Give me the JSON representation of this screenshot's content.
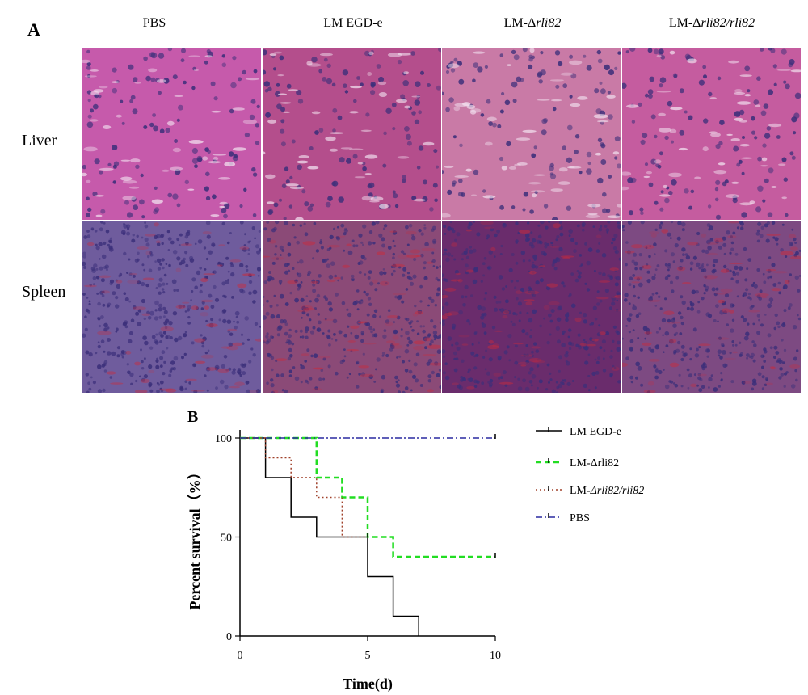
{
  "panel_a": {
    "letter": "A",
    "columns": [
      {
        "prefix": "PBS",
        "italic": ""
      },
      {
        "prefix": "LM EGD-e",
        "italic": ""
      },
      {
        "prefix": "LM-Δ",
        "italic": "rli82"
      },
      {
        "prefix": "LM-Δ",
        "italic": "rli82/rli82"
      }
    ],
    "rows": [
      "Liver",
      "Spleen"
    ],
    "colors": {
      "liver": [
        "#c65aab",
        "#b44e8c",
        "#c97aa6",
        "#c55c9f"
      ],
      "spleen": [
        "#6f5c9d",
        "#8b4a77",
        "#6a2c6c",
        "#7d4a82"
      ],
      "nucleus": "#3b2f7a",
      "vessel_red": "#cc2a3a"
    }
  },
  "panel_b": {
    "letter": "B",
    "chart_data": {
      "type": "line",
      "step": true,
      "xlabel": "Time(d)",
      "ylabel": "Percent survival（%）",
      "xlim": [
        0,
        10
      ],
      "ylim": [
        0,
        100
      ],
      "xticks": [
        "0",
        "5",
        "10"
      ],
      "yticks": [
        "0",
        "50",
        "100"
      ],
      "series": [
        {
          "name": "LM EGD-e",
          "color": "#000000",
          "dash": "",
          "x": [
            0,
            1,
            2,
            3,
            5,
            6,
            7
          ],
          "y": [
            100,
            80,
            60,
            50,
            30,
            10,
            0
          ]
        },
        {
          "name": "LM-Δrli82",
          "color": "#22dd22",
          "dash": "7,4",
          "x": [
            0,
            3,
            4,
            5,
            6,
            10
          ],
          "y": [
            100,
            80,
            70,
            50,
            40,
            40
          ]
        },
        {
          "name": "LM-Δrli82/rli82",
          "italic_part": "Δrli82/rli82",
          "prefix": "LM-",
          "color": "#a0402a",
          "dash": "2,3",
          "x": [
            0,
            1,
            2,
            3,
            4,
            5
          ],
          "y": [
            100,
            90,
            80,
            70,
            50,
            50
          ]
        },
        {
          "name": "PBS",
          "color": "#2a2aa0",
          "dash": "8,3,2,3",
          "x": [
            0,
            10
          ],
          "y": [
            100,
            100
          ]
        }
      ]
    }
  }
}
